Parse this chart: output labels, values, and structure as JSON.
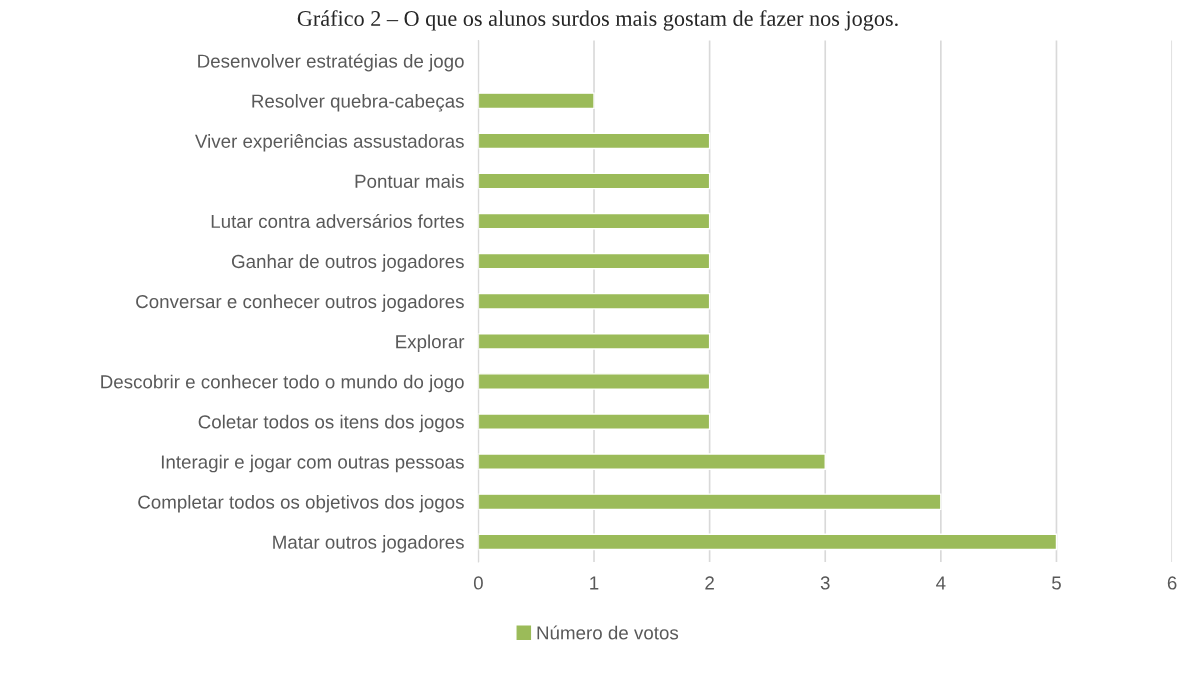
{
  "chart_data": {
    "type": "bar",
    "orientation": "horizontal",
    "title": "Gráfico 2 – O que os alunos surdos mais gostam de fazer nos jogos.",
    "categories": [
      "Desenvolver estratégias de jogo",
      "Resolver quebra-cabeças",
      "Viver experiências assustadoras",
      "Pontuar mais",
      "Lutar contra adversários fortes",
      "Ganhar de outros jogadores",
      "Conversar e conhecer outros jogadores",
      "Explorar",
      "Descobrir e conhecer todo o mundo do jogo",
      "Coletar todos os itens dos jogos",
      "Interagir e jogar com outras pessoas",
      "Completar todos os objetivos dos jogos",
      "Matar outros jogadores"
    ],
    "series": [
      {
        "name": "Número de votos",
        "color": "#9bbb59",
        "values": [
          null,
          1,
          2,
          2,
          2,
          2,
          2,
          2,
          2,
          2,
          3,
          4,
          5
        ]
      }
    ],
    "xlim": [
      0,
      6
    ],
    "xticks": [
      0,
      1,
      2,
      3,
      4,
      5,
      6
    ],
    "grid": "x",
    "legend": "bottom"
  }
}
